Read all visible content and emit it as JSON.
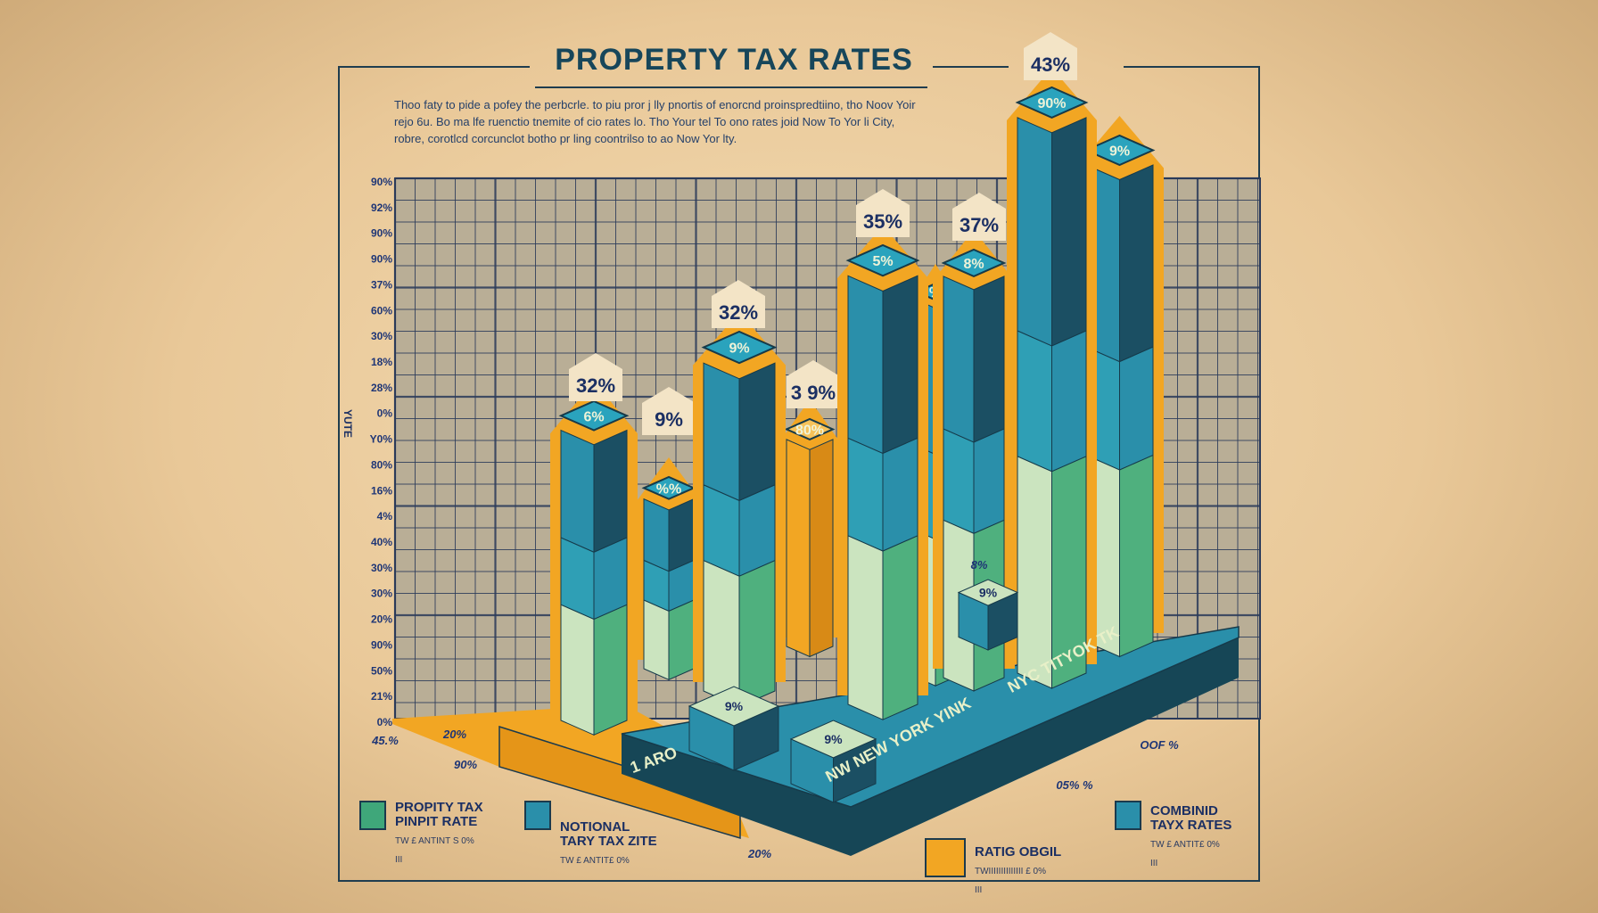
{
  "title": "PROPERTY TAX RATES",
  "description": [
    "Thoo faty to pide a pofey the perbcrle. to piu pror j lly pnortis of enorcnd proinspredtiino, tho Noov Yoir",
    "rejo 6u. Bo ma lfe ruenctio tnemite of cio rates lo.   Tho Your tel To ono rates joid Now To Yor li City,",
    "robre, corotlcd corcunclot botho pr ling coontrilso to ao Now Yor lty."
  ],
  "colors": {
    "dark_teal": "#1b4f63",
    "teal": "#2a8faa",
    "green": "#4fb07e",
    "light_green": "#cbe4bf",
    "orange": "#f2a623",
    "grid": "#2a3a5a"
  },
  "chart_data": {
    "type": "bar",
    "title": "PROPERTY TAX RATES",
    "ylabel": "YUTE",
    "grid": true,
    "yticks": [
      "90%",
      "92%",
      "90%",
      "90%",
      "37%",
      "60%",
      "30%",
      "18%",
      "28%",
      "0%",
      "Y0%",
      "80%",
      "16%",
      "4%",
      "40%",
      "30%",
      "30%",
      "20%",
      "90%",
      "50%",
      "21%",
      "0%"
    ],
    "bars": [
      {
        "label": "32%",
        "cap_label": "6%"
      },
      {
        "label": "9%",
        "cap_label": "%%"
      },
      {
        "label": "32%",
        "cap_label": "9%"
      },
      {
        "label": "3 9%",
        "cap_label": "80%"
      },
      {
        "label": "35%",
        "cap_label": "5%"
      },
      {
        "label": "",
        "cap_label": "%"
      },
      {
        "label": "37%",
        "cap_label": "8%"
      },
      {
        "label": "43%",
        "cap_label": "90%"
      },
      {
        "label": "",
        "cap_label": "9%"
      }
    ],
    "small_blocks": [
      {
        "label": "9%"
      },
      {
        "label": "9%"
      },
      {
        "label": "9%"
      }
    ],
    "base_labels": [
      "1 ARO",
      "NW NEW YORK YINK",
      "NYC TITYOK TK"
    ],
    "stray_labels": [
      "45.%",
      "20%",
      "90%",
      "20%",
      "OOF %",
      "05% %",
      "8%"
    ],
    "legend_placement": "bottom"
  },
  "legend": [
    {
      "line1": "PROPITY TAX",
      "line2": "PINPIT RATE",
      "sub": "TW  £ ANTINT S  0%",
      "sub2": "III",
      "color": "#3fa77a"
    },
    {
      "line1": "NOTIONAL",
      "line2": "TARY TAX ZITE",
      "sub": "TW  £ ANTIT£  0%",
      "sub2": "",
      "color": "#2a8faa"
    },
    {
      "line1": "RATIG OBGIL",
      "line2": "",
      "sub": "TWIIIIIIIIIIIIII £  0%",
      "sub2": "III",
      "color": "#f2a623"
    },
    {
      "line1": "COMBINID",
      "line2": "TAYX RATES",
      "sub": "TW  £ ANTIT£  0%",
      "sub2": "III",
      "color": "#2a8faa"
    }
  ]
}
